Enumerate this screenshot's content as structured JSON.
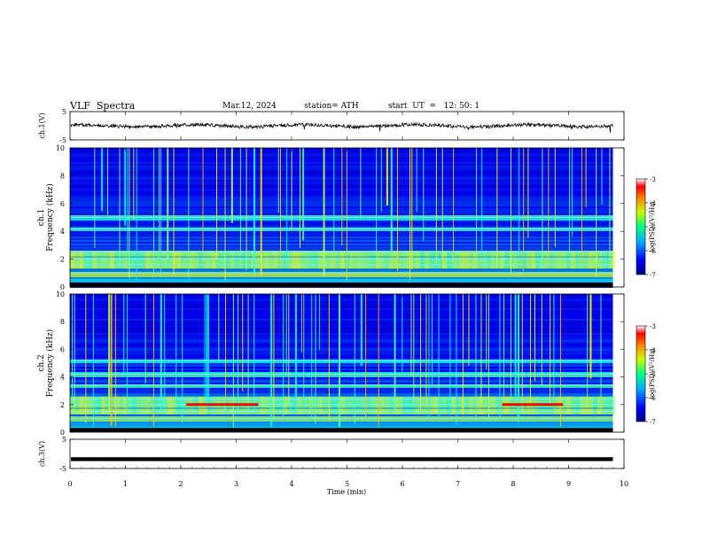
{
  "header": {
    "title": "VLF  Spectra",
    "date": "Mar.12, 2024",
    "station": "station= ATH",
    "start": "start  UT  =   12: 50: 1"
  },
  "colors": {
    "spectrum_low": "#00007f",
    "spectrum_mid": "#00c8ff",
    "spectrum_high": "#ff0000",
    "trace": "#000000"
  },
  "chart_data": [
    {
      "type": "line",
      "name": "ch1-waveform",
      "ylabel": "ch.1(V)",
      "ylim": [
        -5,
        5
      ],
      "yticks": [
        "5",
        "-5"
      ],
      "xlim": [
        0,
        10
      ],
      "x_range_data": [
        0,
        9.8
      ],
      "baseline": 0,
      "amplitude_approx": 1.2
    },
    {
      "type": "heatmap",
      "name": "ch1-spectrogram",
      "ylabel": "ch.1\nFrequency (kHz)",
      "ylim": [
        0,
        10
      ],
      "yticks": [
        "0",
        "2",
        "4",
        "6",
        "8",
        "10"
      ],
      "xlim": [
        0,
        10
      ],
      "colorbar": {
        "label": "log(PSD)(V²/Hz)",
        "range": [
          -7,
          -3
        ],
        "ticks": [
          "-3",
          "-4",
          "-5",
          "-6",
          "-7"
        ]
      },
      "bands_khz": [
        1.0,
        1.6,
        2.0,
        2.5,
        4.2,
        5.0
      ],
      "intense_segments": []
    },
    {
      "type": "heatmap",
      "name": "ch2-spectrogram",
      "ylabel": "ch.2\nFrequency (kHz)",
      "ylim": [
        0,
        10
      ],
      "yticks": [
        "0",
        "2",
        "4",
        "6",
        "8",
        "10"
      ],
      "xlim": [
        0,
        10
      ],
      "colorbar": {
        "label": "log(PSD)(V²/Hz)",
        "range": [
          -7,
          -3
        ],
        "ticks": [
          "-3",
          "-4",
          "-5",
          "-6",
          "-7"
        ]
      },
      "bands_khz": [
        1.0,
        1.5,
        2.0,
        2.4,
        3.4,
        4.2,
        5.2
      ],
      "intense_segments": [
        {
          "t_start": 2.1,
          "t_end": 3.4,
          "freq_khz": 2.0
        },
        {
          "t_start": 7.8,
          "t_end": 8.9,
          "freq_khz": 2.0
        }
      ]
    },
    {
      "type": "line",
      "name": "ch3-waveform",
      "ylabel": "ch.3(V)",
      "ylim": [
        -5,
        5
      ],
      "yticks": [
        "5",
        "-5"
      ],
      "xlim": [
        0,
        10
      ],
      "xlabel": "Time  (min)",
      "xticks": [
        "0",
        "1",
        "2",
        "3",
        "4",
        "5",
        "6",
        "7",
        "8",
        "9",
        "10"
      ],
      "x_range_data": [
        0,
        9.8
      ],
      "baseline": -1.8
    }
  ]
}
